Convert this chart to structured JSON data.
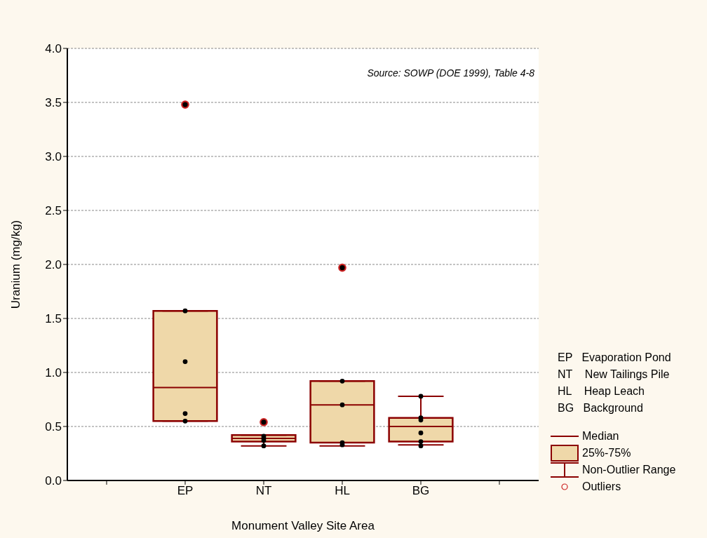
{
  "chart_data": {
    "type": "box",
    "xlabel": "Monument Valley Site Area",
    "ylabel": "Uranium (mg/kg)",
    "categories": [
      null,
      "EP",
      "NT",
      "HL",
      "BG",
      null
    ],
    "ylim": [
      0,
      4
    ],
    "yticks": [
      {
        "value": 0,
        "label": "0.0"
      },
      {
        "value": 0.5,
        "label": "0.5"
      },
      {
        "value": 1,
        "label": "1.0"
      },
      {
        "value": 1.5,
        "label": "1.5"
      },
      {
        "value": 2,
        "label": "2.0"
      },
      {
        "value": 2.5,
        "label": "2.5"
      },
      {
        "value": 3,
        "label": "3.0"
      },
      {
        "value": 3.5,
        "label": "3.5"
      },
      {
        "value": 4,
        "label": "4.0"
      }
    ],
    "grid": "y",
    "marker": "circle",
    "series": [
      {
        "type": "box",
        "color": "#efd8a9",
        "boxes": [
          null,
          {
            "low": 0.55,
            "q1": 0.55,
            "median": 0.86,
            "q3": 1.57,
            "high": 1.57,
            "outliers": [
              3.48
            ]
          },
          {
            "low": 0.32,
            "q1": 0.36,
            "median": 0.39,
            "q3": 0.42,
            "high": 0.42,
            "outliers": [
              0.54
            ]
          },
          {
            "low": 0.32,
            "q1": 0.35,
            "median": 0.7,
            "q3": 0.92,
            "high": 0.92,
            "outliers": [
              1.97
            ]
          },
          {
            "low": 0.33,
            "q1": 0.36,
            "median": 0.5,
            "q3": 0.58,
            "high": 0.78
          },
          null
        ]
      },
      {
        "type": "scatter",
        "color": "#000000",
        "x": [
          "EP",
          "EP",
          "EP",
          "EP",
          "NT",
          "NT",
          "NT",
          "NT",
          "HL",
          "HL",
          "HL",
          "HL",
          "BG",
          "BG",
          "BG",
          "BG",
          "BG",
          "BG"
        ],
        "values": [
          1.57,
          1.1,
          0.62,
          0.55,
          0.41,
          0.39,
          0.37,
          0.32,
          0.92,
          0.7,
          0.35,
          0.33,
          0.78,
          0.58,
          0.56,
          0.44,
          0.36,
          0.32
        ]
      }
    ],
    "annotations": [
      "Source: SOWP (DOE 1999), Table 4-8",
      "EP   Evaporation Pond",
      "NT    New Tailings Pile",
      "HL    Heap Leach",
      "BG   Background",
      "Median",
      "25%-75%",
      "Non-Outlier Range",
      "Outliers"
    ]
  }
}
